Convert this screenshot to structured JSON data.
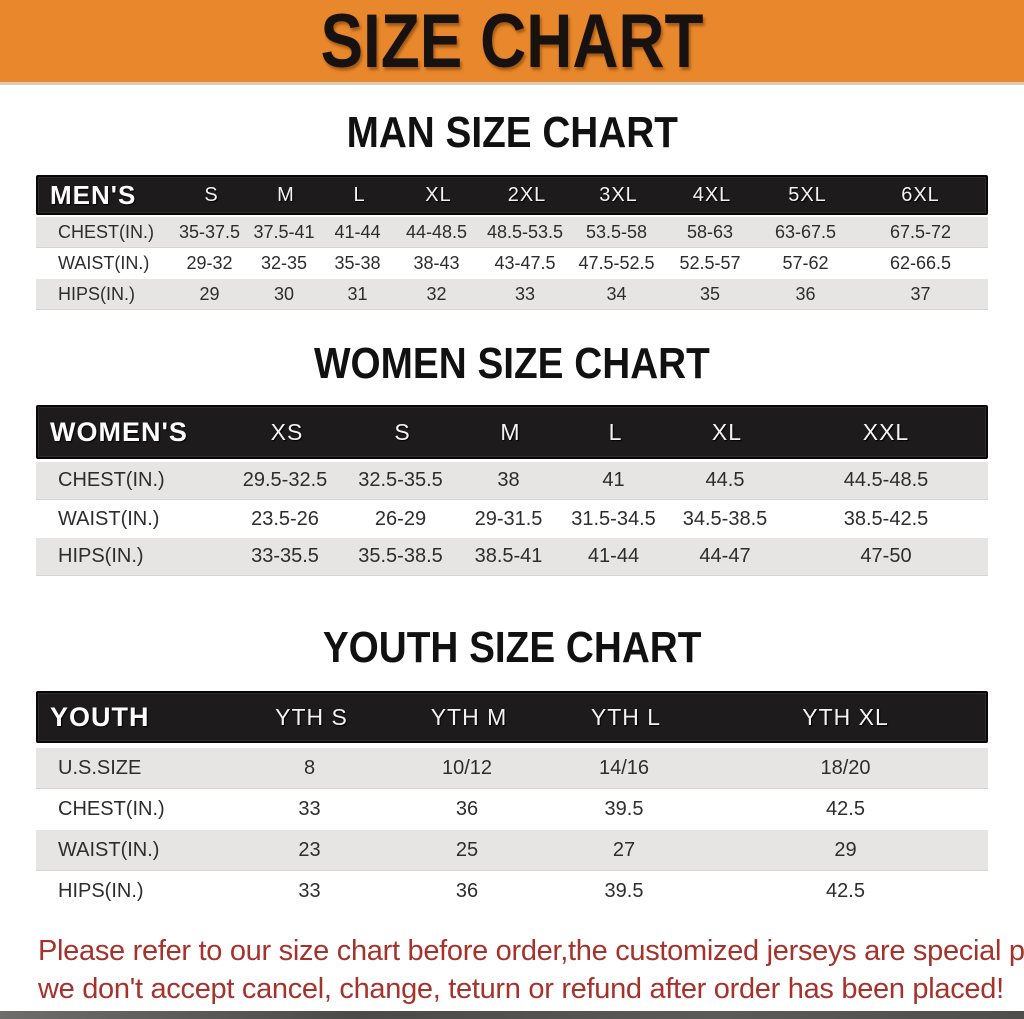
{
  "banner": {
    "title": "SIZE CHART",
    "bg_color": "#E8872B",
    "text_color": "#171210"
  },
  "sections": [
    {
      "title": "MAN SIZE CHART",
      "header_label": "MEN'S",
      "columns": [
        "S",
        "M",
        "L",
        "XL",
        "2XL",
        "3XL",
        "4XL",
        "5XL",
        "6XL"
      ],
      "rows": [
        {
          "label": "CHEST(IN.)",
          "values": [
            "35-37.5",
            "37.5-41",
            "41-44",
            "44-48.5",
            "48.5-53.5",
            "53.5-58",
            "58-63",
            "63-67.5",
            "67.5-72"
          ]
        },
        {
          "label": "WAIST(IN.)",
          "values": [
            "29-32",
            "32-35",
            "35-38",
            "38-43",
            "43-47.5",
            "47.5-52.5",
            "52.5-57",
            "57-62",
            "62-66.5"
          ]
        },
        {
          "label": "HIPS(IN.)",
          "values": [
            "29",
            "30",
            "31",
            "32",
            "33",
            "34",
            "35",
            "36",
            "37"
          ]
        }
      ]
    },
    {
      "title": "WOMEN SIZE CHART",
      "header_label": "WOMEN'S",
      "columns": [
        "XS",
        "S",
        "M",
        "L",
        "XL",
        "XXL"
      ],
      "rows": [
        {
          "label": "CHEST(IN.)",
          "values": [
            "29.5-32.5",
            "32.5-35.5",
            "38",
            "41",
            "44.5",
            "44.5-48.5"
          ]
        },
        {
          "label": "WAIST(IN.)",
          "values": [
            "23.5-26",
            "26-29",
            "29-31.5",
            "31.5-34.5",
            "34.5-38.5",
            "38.5-42.5"
          ]
        },
        {
          "label": "HIPS(IN.)",
          "values": [
            "33-35.5",
            "35.5-38.5",
            "38.5-41",
            "41-44",
            "44-47",
            "47-50"
          ]
        }
      ]
    },
    {
      "title": "YOUTH SIZE CHART",
      "header_label": "YOUTH",
      "columns": [
        "YTH S",
        "YTH M",
        "YTH L",
        "YTH XL"
      ],
      "rows": [
        {
          "label": "U.S.SIZE",
          "values": [
            "8",
            "10/12",
            "14/16",
            "18/20"
          ]
        },
        {
          "label": "CHEST(IN.)",
          "values": [
            "33",
            "36",
            "39.5",
            "42.5"
          ]
        },
        {
          "label": "WAIST(IN.)",
          "values": [
            "23",
            "25",
            "27",
            "29"
          ]
        },
        {
          "label": "HIPS(IN.)",
          "values": [
            "33",
            "36",
            "39.5",
            "42.5"
          ]
        }
      ]
    }
  ],
  "disclaimer": {
    "line1": "Please refer to our size chart before order,the customized jerseys are special products,",
    "line2": "we don't accept cancel, change, teturn or refund after order has been placed!",
    "color": "#A6322C"
  },
  "colors": {
    "banner_orange": "#E8872B",
    "header_bar_black": "#1d1b1b",
    "row_gray": "#E6E5E4",
    "row_white": "#ffffff",
    "disclaimer_red": "#A6322C"
  }
}
